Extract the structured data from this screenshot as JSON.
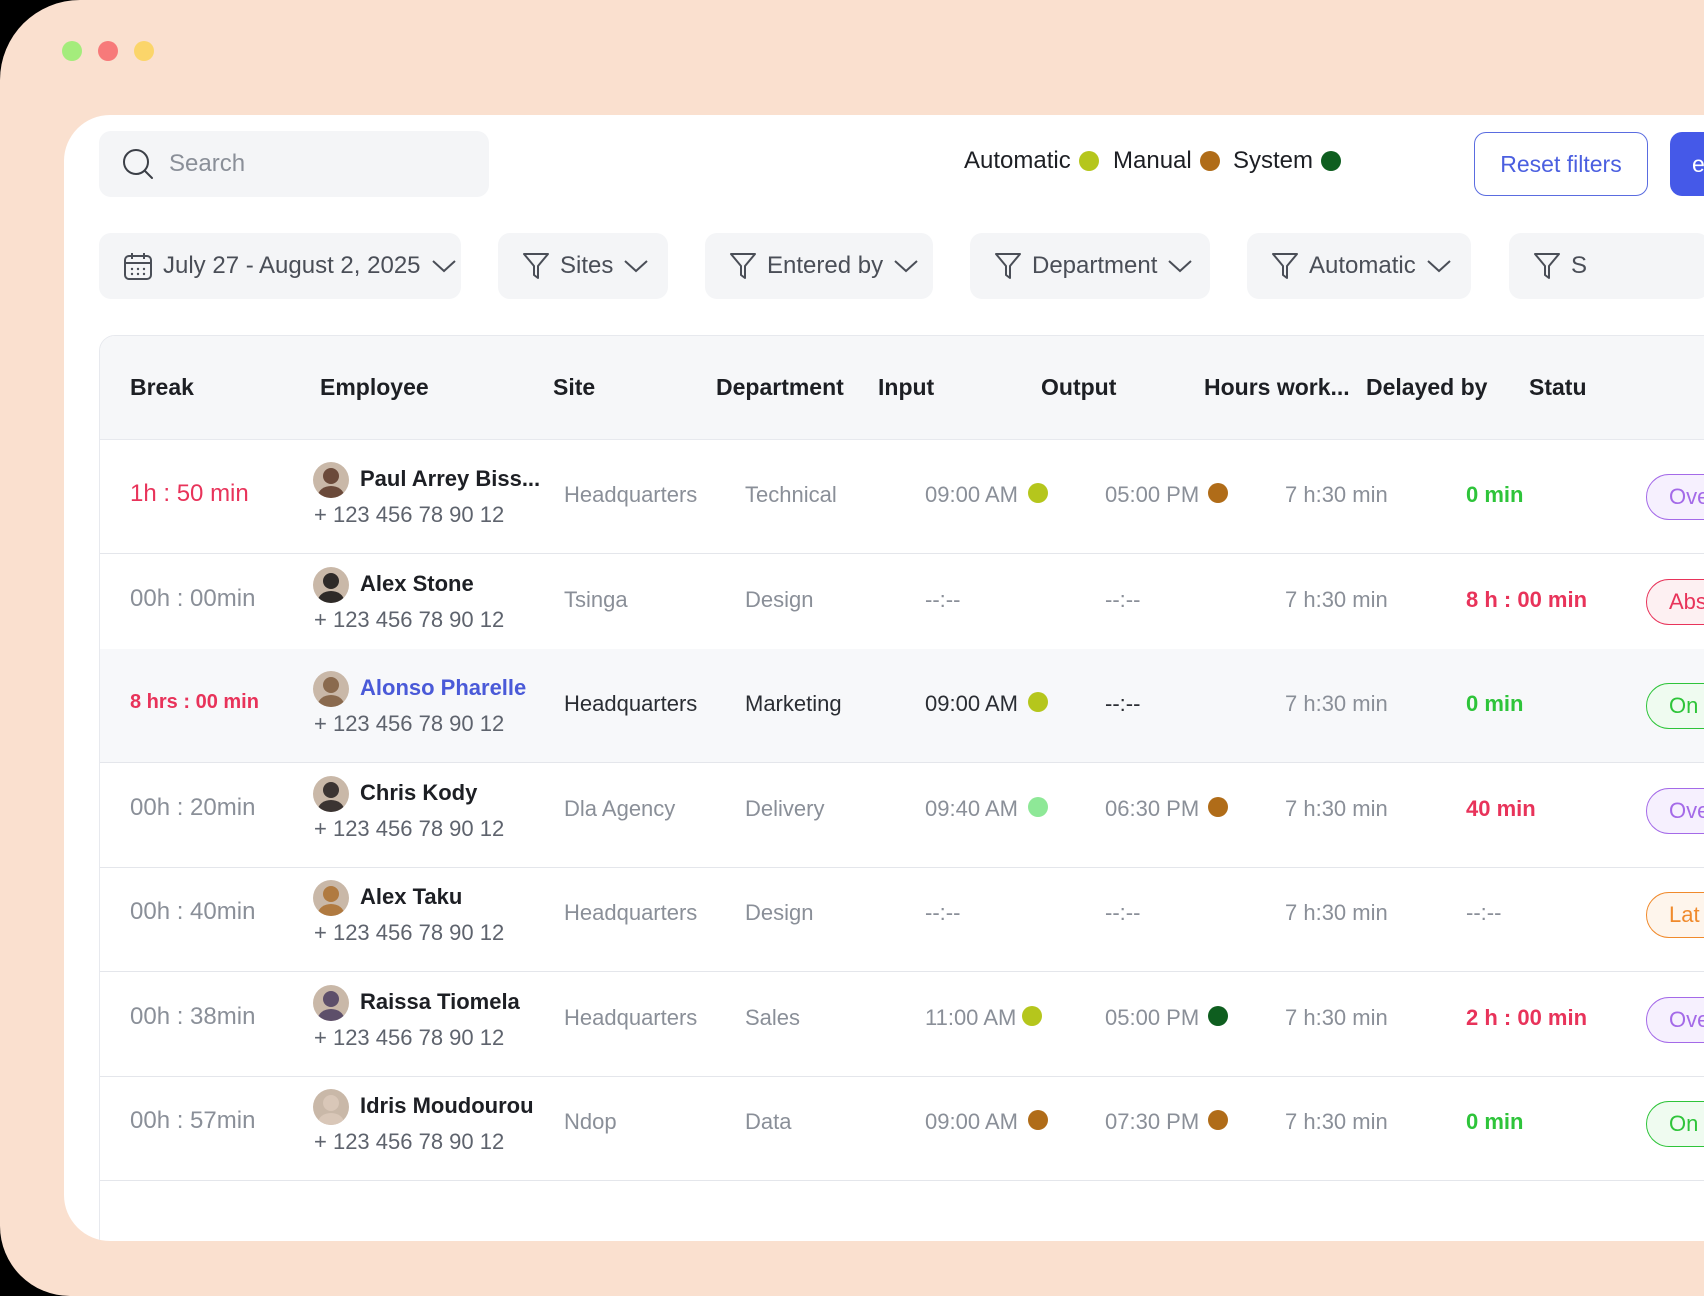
{
  "search": {
    "placeholder": "Search"
  },
  "legend": [
    {
      "label": "Automatic",
      "color": "#b5c61c"
    },
    {
      "label": "Manual",
      "color": "#b06c18"
    },
    {
      "label": "System",
      "color": "#0e5e1f"
    }
  ],
  "actions": {
    "reset_label": "Reset filters",
    "export_label": "e"
  },
  "filters": {
    "date": "July 27 - August 2, 2025",
    "sites": "Sites",
    "entered_by": "Entered by",
    "department": "Department",
    "automatic": "Automatic",
    "status": "S"
  },
  "columns": {
    "break": "Break",
    "employee": "Employee",
    "site": "Site",
    "department": "Department",
    "input": "Input",
    "output": "Output",
    "hours": "Hours work...",
    "delayed": "Delayed by",
    "status": "Statu"
  },
  "colors": {
    "red": "#e8335a",
    "green": "#2ec43a",
    "muted": "#8a8f98",
    "link": "#4a5ad8"
  },
  "rows": [
    {
      "break": "1h : 50 min",
      "name": "Paul Arrey Biss...",
      "phone": "+ 123 456 78 90 12",
      "site": "Headquarters",
      "department": "Technical",
      "input": "09:00 AM",
      "input_dot": "#b5c61c",
      "output": "05:00 PM",
      "output_dot": "#b06c18",
      "hours": "7 h:30 min",
      "delayed": "0 min",
      "status": "Ove",
      "status_color": "#a46ae8",
      "status_bg": "#f6f0fe"
    },
    {
      "break": "00h : 00min",
      "name": "Alex Stone",
      "phone": "+ 123 456 78 90 12",
      "site": "Tsinga",
      "department": "Design",
      "input": "--:--",
      "input_dot": "",
      "output": "--:--",
      "output_dot": "",
      "hours": "7 h:30 min",
      "delayed": "8 h : 00 min",
      "status": "Abs",
      "status_color": "#e8335a",
      "status_bg": "#fdf0f2"
    },
    {
      "break": "8 hrs : 00 min",
      "name": "Alonso Pharelle",
      "phone": "+ 123 456 78 90 12",
      "site": "Headquarters",
      "department": "Marketing",
      "input": "09:00 AM",
      "input_dot": "#b5c61c",
      "output": "--:--",
      "output_dot": "",
      "hours": "7 h:30 min",
      "delayed": "0 min",
      "status": "On",
      "status_color": "#2ec43a",
      "status_bg": "#effbf0"
    },
    {
      "break": "00h : 20min",
      "name": "Chris Kody",
      "phone": "+ 123 456 78 90 12",
      "site": "Dla Agency",
      "department": "Delivery",
      "input": "09:40 AM",
      "input_dot": "#8ee897",
      "output": "06:30 PM",
      "output_dot": "#b06c18",
      "hours": "7 h:30 min",
      "delayed": "40 min",
      "status": "Ove",
      "status_color": "#a46ae8",
      "status_bg": "#f6f0fe"
    },
    {
      "break": "00h : 40min",
      "name": "Alex Taku",
      "phone": "+ 123 456 78 90 12",
      "site": "Headquarters",
      "department": "Design",
      "input": "--:--",
      "input_dot": "",
      "output": "--:--",
      "output_dot": "",
      "hours": "7 h:30 min",
      "delayed": "--:--",
      "status": "Lat",
      "status_color": "#f08a2c",
      "status_bg": "#fef5ec"
    },
    {
      "break": "00h : 38min",
      "name": "Raissa Tiomela",
      "phone": "+ 123 456 78 90 12",
      "site": "Headquarters",
      "department": "Sales",
      "input": "11:00 AM",
      "input_dot": "#b5c61c",
      "output": "05:00 PM",
      "output_dot": "#0e5e1f",
      "hours": "7 h:30 min",
      "delayed": "2 h : 00 min",
      "status": "Ove",
      "status_color": "#a46ae8",
      "status_bg": "#f6f0fe"
    },
    {
      "break": "00h : 57min",
      "name": "Idris Moudourou",
      "phone": "+ 123 456 78 90 12",
      "site": "Ndop",
      "department": "Data",
      "input": "09:00 AM",
      "input_dot": "#b06c18",
      "output": "07:30 PM",
      "output_dot": "#b06c18",
      "hours": "7 h:30 min",
      "delayed": "0 min",
      "status": "On",
      "status_color": "#2ec43a",
      "status_bg": "#effbf0"
    }
  ]
}
